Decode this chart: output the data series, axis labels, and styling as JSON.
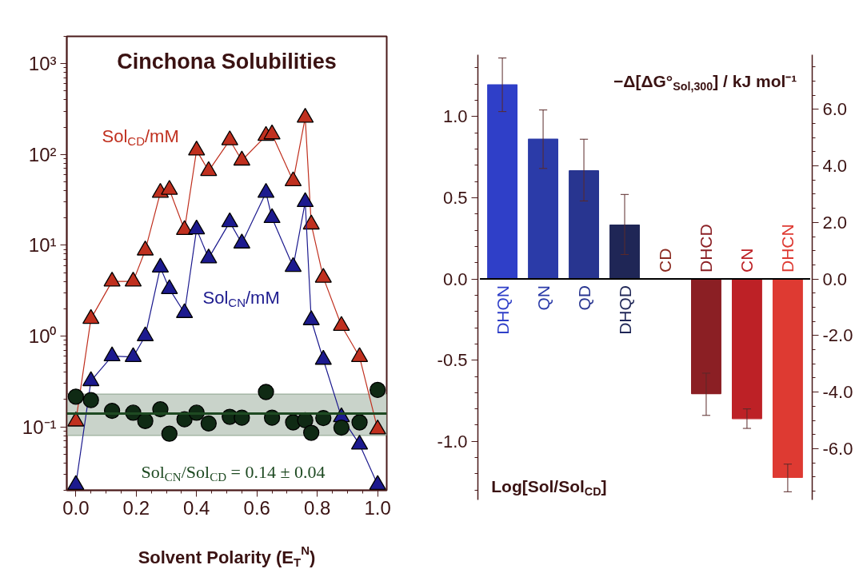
{
  "chart_data": [
    {
      "type": "line",
      "title": "Cinchona Solubilities",
      "xlabel": "Solvent Polarity (E$_{T}$$^{N}$)",
      "log": "y",
      "grid": false,
      "xlim": [
        -0.03,
        1.03
      ],
      "xticks": [
        {
          "value": 0,
          "label": "0.0"
        },
        {
          "value": 0.2,
          "label": "0.2"
        },
        {
          "value": 0.4,
          "label": "0.4"
        },
        {
          "value": 0.6,
          "label": "0.6"
        },
        {
          "value": 0.8,
          "label": "0.8"
        },
        {
          "value": 1,
          "label": "1.0"
        }
      ],
      "ylim": [
        0.02,
        2000
      ],
      "yticks": [
        {
          "value": 0.1,
          "label": "10⁻¹"
        },
        {
          "value": 1,
          "label": "10⁰"
        },
        {
          "value": 10,
          "label": "10¹"
        },
        {
          "value": 100,
          "label": "10²"
        },
        {
          "value": 1000,
          "label": "10³"
        }
      ],
      "x": [
        0,
        0.05,
        0.12,
        0.19,
        0.23,
        0.28,
        0.31,
        0.36,
        0.4,
        0.44,
        0.51,
        0.55,
        0.63,
        0.65,
        0.72,
        0.76,
        0.78,
        0.82,
        0.88,
        0.94,
        1.0
      ],
      "series": [
        {
          "name": "Sol$_{CD}$/mM",
          "type": "line",
          "marker": "triangle",
          "color": "#c0301f",
          "values": [
            0.115,
            1.55,
            4.0,
            4.0,
            8.8,
            38,
            41,
            14.8,
            111,
            66,
            144,
            86,
            161,
            167,
            51,
            255,
            17,
            4.4,
            1.3,
            0.59,
            0.094
          ]
        },
        {
          "name": "Sol$_{CN}$/mM",
          "type": "line",
          "marker": "triangle",
          "color": "#1c1a8e",
          "values": [
            0.023,
            0.32,
            0.6,
            0.59,
            1.0,
            5.7,
            3.3,
            1.8,
            15,
            7.2,
            18,
            10.5,
            38,
            20,
            5.8,
            30,
            1.5,
            0.55,
            0.128,
            0.064,
            0.023
          ]
        },
        {
          "type": "scatter",
          "marker": "circle",
          "color": "#0f2a14",
          "values": [
            0.215,
            0.197,
            0.15,
            0.143,
            0.116,
            0.156,
            0.084,
            0.121,
            0.143,
            0.109,
            0.129,
            0.126,
            0.242,
            0.126,
            0.112,
            0.118,
            0.086,
            0.125,
            0.098,
            0.112,
            0.255
          ]
        }
      ],
      "ref_lines": [
        {
          "axis": "y",
          "value": 0.14,
          "label": "Sol$_{CN}$/Sol$_{CD}$ = 0.14 ± 0.04",
          "color": "#1e4a22"
        }
      ],
      "bands": [
        {
          "axis": "y",
          "from": 0.08,
          "to": 0.23,
          "color": "#c9d3ca"
        }
      ]
    },
    {
      "type": "bar",
      "ylabel": "Log[Sol/Sol$_{CD}$]",
      "y2label": "−Δ[ΔG°$_{Sol,300}$] / kJ mol⁻¹",
      "grid": false,
      "categories": [
        "DHQN",
        "QN",
        "QD",
        "DHQD",
        "CD",
        "DHCD",
        "CN",
        "DHCN"
      ],
      "values": [
        1.195,
        0.861,
        0.666,
        0.332,
        0,
        -0.706,
        -0.86,
        -1.222
      ],
      "colors": [
        "#2f3fc8",
        "#2b3ba8",
        "#283590",
        "#1f2656",
        "#8b2a20",
        "#8b1f24",
        "#bd2126",
        "#de3a32"
      ],
      "errors": [
        [
          1.03,
          1.36
        ],
        [
          0.68,
          1.04
        ],
        [
          0.48,
          0.86
        ],
        [
          0.15,
          0.52
        ],
        null,
        [
          -0.84,
          -0.58
        ],
        [
          -0.92,
          -0.8
        ],
        [
          -1.31,
          -1.14
        ]
      ],
      "ylim": [
        -1.36,
        1.38
      ],
      "yticks": [
        {
          "value": -1,
          "label": "-1.0"
        },
        {
          "value": -0.5,
          "label": "-0.5"
        },
        {
          "value": 0,
          "label": "0.0"
        },
        {
          "value": 0.5,
          "label": "0.5"
        },
        {
          "value": 1,
          "label": "1.0"
        }
      ],
      "y2lim": [
        -7.81,
        7.93
      ],
      "y2ticks": [
        {
          "value": -6,
          "label": "-6.0"
        },
        {
          "value": -4,
          "label": "-4.0"
        },
        {
          "value": -2,
          "label": "-2.0"
        },
        {
          "value": 0,
          "label": "0.0"
        },
        {
          "value": 2,
          "label": "2.0"
        },
        {
          "value": 4,
          "label": "4.0"
        },
        {
          "value": 6,
          "label": "6.0"
        }
      ]
    }
  ]
}
